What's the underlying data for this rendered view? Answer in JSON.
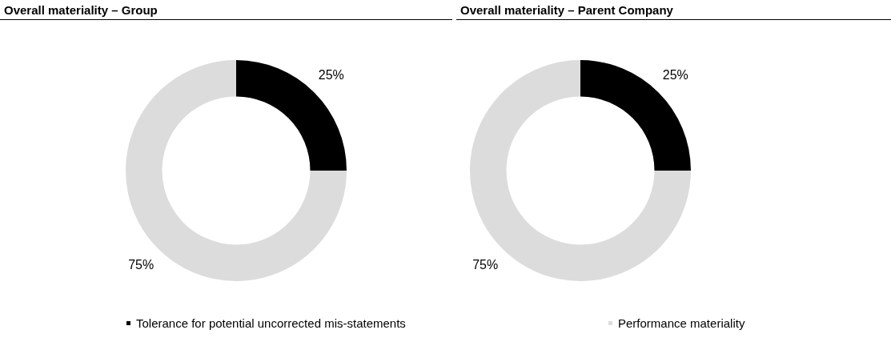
{
  "chart_data": [
    {
      "type": "donut",
      "title": "Overall materiality – Group",
      "categories": [
        "Tolerance for potential uncorrected mis-statements",
        "Performance materiality"
      ],
      "values": [
        25,
        75
      ],
      "colors": [
        "#000000",
        "#dcdcdc"
      ],
      "value_labels": [
        "25%",
        "75%"
      ],
      "legend": "bottom"
    },
    {
      "type": "donut",
      "title": "Overall materiality – Parent Company",
      "categories": [
        null,
        null
      ],
      "values": [
        25,
        75
      ],
      "colors": [
        "#000000",
        "#dcdcdc"
      ],
      "value_labels": [
        "25%",
        "75%"
      ]
    }
  ]
}
